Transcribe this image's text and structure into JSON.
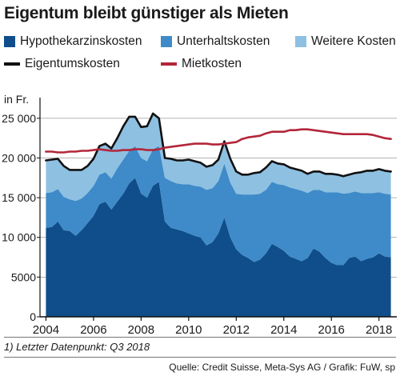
{
  "title": "Eigentum bleibt günstiger als Mieten",
  "unit_label": "in Fr.",
  "legend": [
    {
      "label": "Hypothekarzinskosten",
      "color": "#0f4e8a",
      "kind": "area"
    },
    {
      "label": "Unterhaltskosten",
      "color": "#3f8bc9",
      "kind": "area"
    },
    {
      "label": "Weitere Kosten",
      "color": "#8ec0e2",
      "kind": "area"
    },
    {
      "label": "Eigentumskosten",
      "color": "#111111",
      "kind": "line"
    },
    {
      "label": "Mietkosten",
      "color": "#b3263a",
      "kind": "line"
    }
  ],
  "footnote": "1) Letzter Datenpunkt: Q3 2018",
  "source": "Quelle: Credit Suisse, Meta-Sys AG / Grafik: FuW, sp",
  "chart_data": {
    "type": "area",
    "x": [
      2004.0,
      2004.25,
      2004.5,
      2004.75,
      2005.0,
      2005.25,
      2005.5,
      2005.75,
      2006.0,
      2006.25,
      2006.5,
      2006.75,
      2007.0,
      2007.25,
      2007.5,
      2007.75,
      2008.0,
      2008.25,
      2008.5,
      2008.75,
      2009.0,
      2009.25,
      2009.5,
      2009.75,
      2010.0,
      2010.25,
      2010.5,
      2010.75,
      2011.0,
      2011.25,
      2011.5,
      2011.75,
      2012.0,
      2012.25,
      2012.5,
      2012.75,
      2013.0,
      2013.25,
      2013.5,
      2013.75,
      2014.0,
      2014.25,
      2014.5,
      2014.75,
      2015.0,
      2015.25,
      2015.5,
      2015.75,
      2016.0,
      2016.25,
      2016.5,
      2016.75,
      2017.0,
      2017.25,
      2017.5,
      2017.75,
      2018.0,
      2018.25,
      2018.5
    ],
    "series": [
      {
        "name": "Hypothekarzinskosten",
        "stack": true,
        "values": [
          11200,
          11300,
          12000,
          10900,
          10800,
          10200,
          10900,
          11800,
          12700,
          14200,
          14500,
          13500,
          14500,
          15500,
          16800,
          17500,
          15500,
          15000,
          16500,
          17000,
          12000,
          11200,
          11000,
          10800,
          10500,
          10200,
          10000,
          9000,
          9400,
          10500,
          12500,
          10000,
          8500,
          7800,
          7400,
          6900,
          7200,
          8000,
          9200,
          8800,
          8300,
          7600,
          7300,
          7000,
          7400,
          8600,
          8200,
          7400,
          6800,
          6500,
          6500,
          7400,
          7600,
          7000,
          7300,
          7500,
          8000,
          7600,
          7500
        ]
      },
      {
        "name": "Unterhaltskosten",
        "stack": true,
        "values": [
          4400,
          4400,
          4100,
          4200,
          4000,
          4400,
          4000,
          3800,
          3800,
          3700,
          3700,
          3900,
          4200,
          4300,
          4100,
          4000,
          4500,
          4600,
          4600,
          4500,
          5500,
          5900,
          5800,
          5900,
          6200,
          6300,
          6400,
          7000,
          6800,
          6600,
          6800,
          6900,
          7000,
          7600,
          8000,
          8500,
          8300,
          8000,
          7800,
          7900,
          8300,
          8700,
          8800,
          8900,
          8200,
          7400,
          7800,
          8300,
          8900,
          9200,
          9000,
          8200,
          8200,
          8600,
          8300,
          8100,
          7700,
          7900,
          7900
        ]
      },
      {
        "name": "Weitere Kosten",
        "stack": true,
        "values": [
          4100,
          4100,
          3800,
          3900,
          3700,
          3900,
          3600,
          3400,
          3400,
          3600,
          3600,
          3800,
          3800,
          4200,
          4300,
          3700,
          3900,
          4400,
          4500,
          3500,
          2500,
          2800,
          2900,
          3000,
          3100,
          3100,
          3000,
          2900,
          2900,
          2700,
          2800,
          3000,
          2800,
          2500,
          2500,
          2700,
          2700,
          2800,
          2600,
          2600,
          2600,
          2500,
          2500,
          2500,
          2400,
          2300,
          2300,
          2300,
          2300,
          2200,
          2200,
          2300,
          2300,
          2600,
          2800,
          2800,
          2900,
          2900,
          2900
        ]
      },
      {
        "name": "Eigentumskosten",
        "type": "line",
        "values": [
          19700,
          19800,
          19900,
          19000,
          18500,
          18500,
          18500,
          19000,
          19900,
          21500,
          21800,
          21200,
          22500,
          24000,
          25200,
          25200,
          23900,
          24000,
          25600,
          25000,
          20000,
          19900,
          19700,
          19700,
          19800,
          19600,
          19400,
          18900,
          19100,
          19800,
          22100,
          19900,
          18300,
          17900,
          17900,
          18100,
          18200,
          18800,
          19600,
          19300,
          19200,
          18800,
          18600,
          18400,
          18000,
          18300,
          18300,
          18000,
          18000,
          17900,
          17700,
          17900,
          18100,
          18200,
          18400,
          18400,
          18600,
          18400,
          18300
        ]
      },
      {
        "name": "Mietkosten",
        "type": "line",
        "values": [
          20800,
          20800,
          20700,
          20700,
          20800,
          20800,
          20900,
          20900,
          21000,
          21100,
          21000,
          20900,
          20900,
          21000,
          21000,
          21100,
          21100,
          21000,
          21000,
          21100,
          21300,
          21400,
          21500,
          21600,
          21700,
          21800,
          21800,
          21800,
          21700,
          21700,
          21800,
          21900,
          22000,
          22400,
          22600,
          22700,
          22800,
          23100,
          23300,
          23300,
          23300,
          23500,
          23500,
          23600,
          23600,
          23500,
          23400,
          23300,
          23200,
          23100,
          23000,
          23000,
          23000,
          23000,
          23000,
          22900,
          22700,
          22500,
          22400
        ]
      }
    ],
    "ylim": [
      0,
      27000
    ],
    "yticks": [
      0,
      5000,
      10000,
      15000,
      20000,
      25000
    ],
    "ytick_labels": [
      "0",
      "5000",
      "10 000",
      "15 000",
      "20 000",
      "25 000"
    ],
    "xticks": [
      2004,
      2006,
      2008,
      2010,
      2012,
      2014,
      2016,
      2018
    ],
    "xtick_labels": [
      "2004",
      "2006",
      "2008",
      "2010",
      "2012",
      "2014",
      "2016",
      "2018"
    ],
    "xlim": [
      2003.75,
      2018.75
    ],
    "grid": "horizontal",
    "legend_position": "top"
  }
}
